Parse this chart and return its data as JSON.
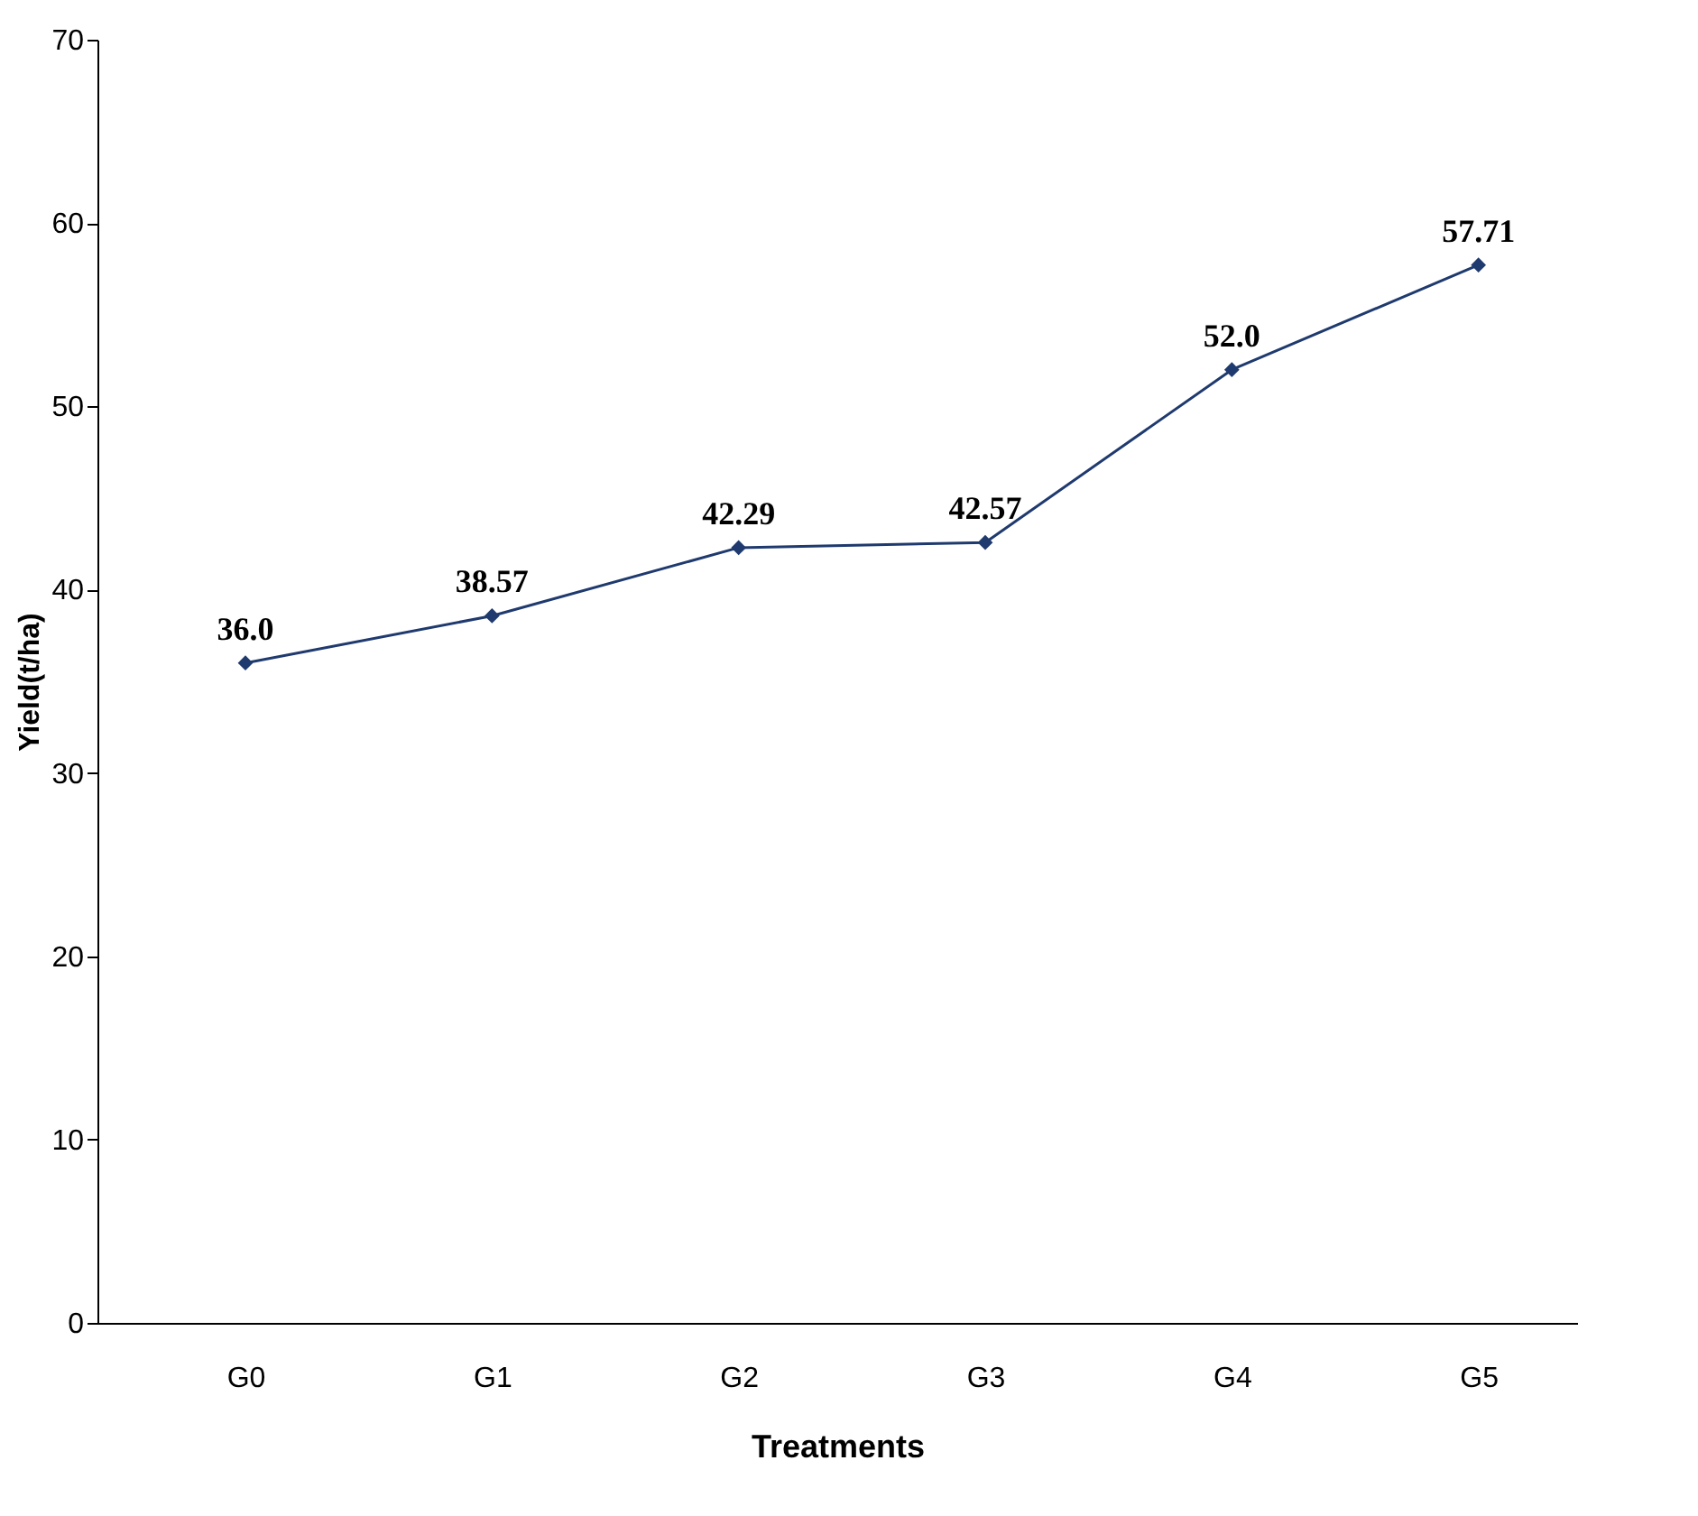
{
  "chart_data": {
    "type": "line",
    "xlabel": "Treatments",
    "ylabel": "Yield(t/ha)",
    "categories": [
      "G0",
      "G1",
      "G2",
      "G3",
      "G4",
      "G5"
    ],
    "series": [
      {
        "color": "#1f3a6e",
        "values": [
          36.0,
          38.57,
          42.29,
          42.57,
          52.0,
          57.71
        ]
      }
    ],
    "value_labels": [
      "36.0",
      "38.57",
      "42.29",
      "42.57",
      "52.0",
      "57.71"
    ],
    "ylim": [
      0,
      70
    ],
    "yticks": [
      0,
      10,
      20,
      30,
      40,
      50,
      60,
      70
    ],
    "marker": "diamond",
    "line_style": "solid",
    "grid": false,
    "legend": false
  }
}
